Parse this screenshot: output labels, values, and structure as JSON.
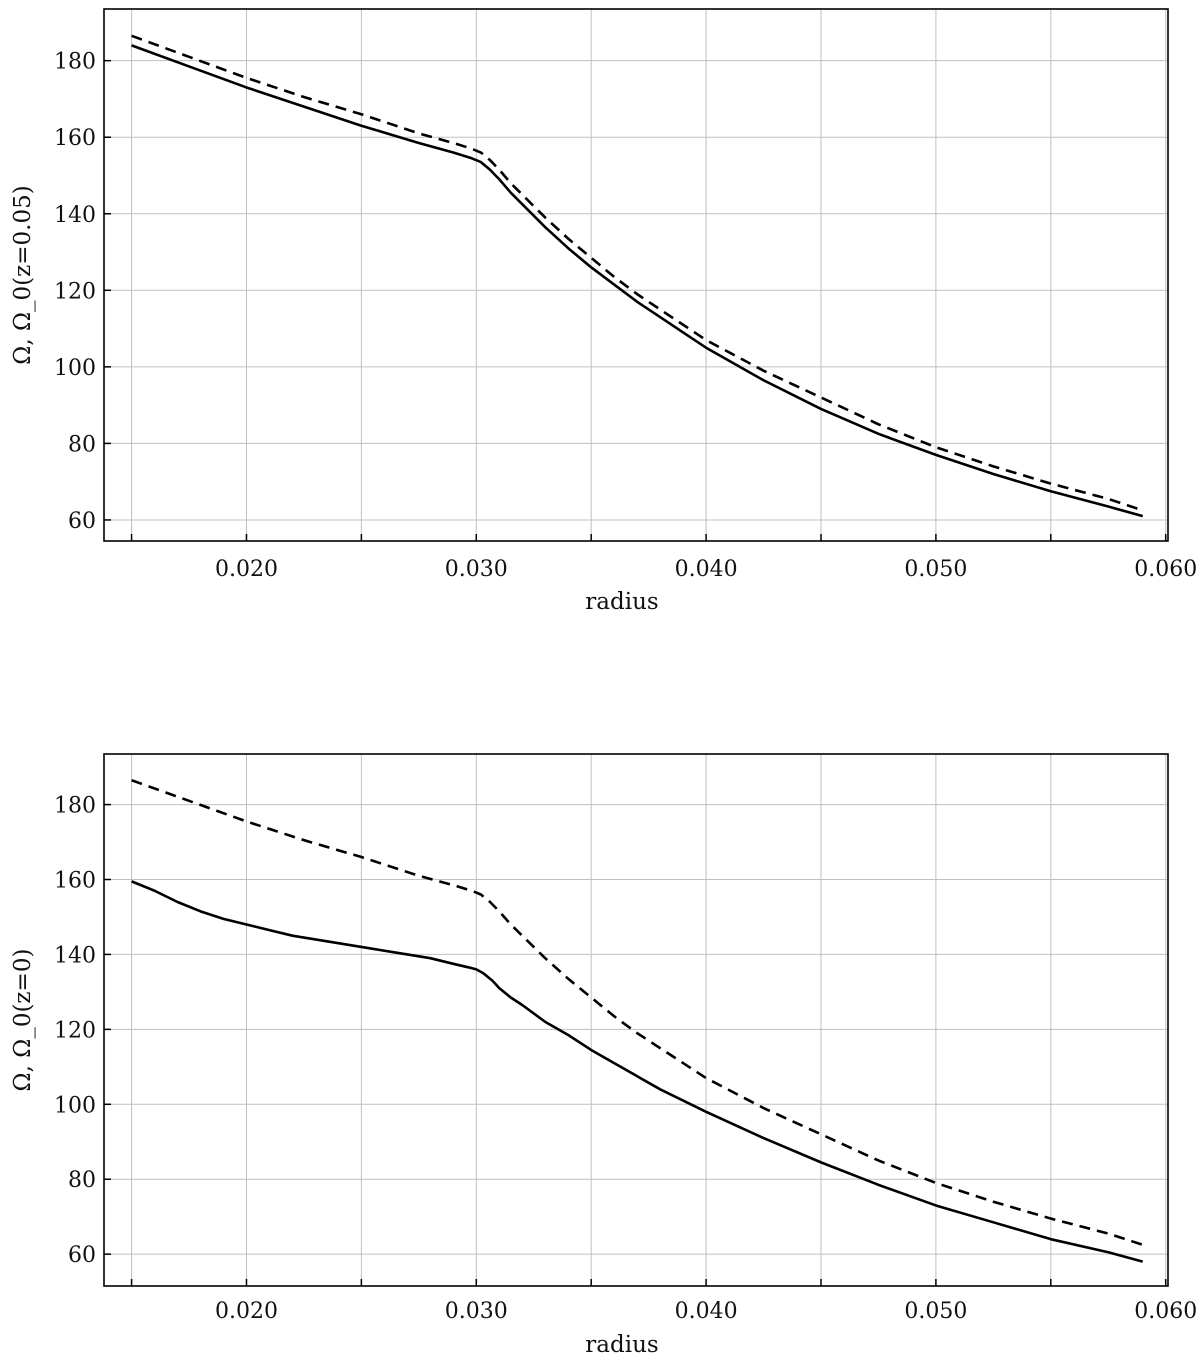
{
  "colors": {
    "line": "#000000",
    "grid": "#c0c0c0",
    "frame": "#000000",
    "background": "#ffffff"
  },
  "chart_data": [
    {
      "type": "line",
      "xlabel": "radius",
      "ylabel": "Ω,  Ω_0(z=0.05)",
      "xlim": [
        0.0138,
        0.0601
      ],
      "ylim": [
        54.5,
        193.5
      ],
      "xticks": [
        0.02,
        0.03,
        0.04,
        0.05,
        0.06
      ],
      "xtick_labels": [
        "0.020",
        "0.030",
        "0.040",
        "0.050",
        "0.060"
      ],
      "xminor": [
        0.015,
        0.025,
        0.035,
        0.045,
        0.055
      ],
      "yticks": [
        60,
        80,
        100,
        120,
        140,
        160,
        180
      ],
      "ytick_labels": [
        "60",
        "80",
        "100",
        "120",
        "140",
        "160",
        "180"
      ],
      "grid": true,
      "series": [
        {
          "style": "solid",
          "x": [
            0.015,
            0.0175,
            0.02,
            0.0225,
            0.025,
            0.0275,
            0.029,
            0.0298,
            0.0302,
            0.0306,
            0.031,
            0.0315,
            0.032,
            0.0325,
            0.033,
            0.034,
            0.035,
            0.036,
            0.037,
            0.038,
            0.039,
            0.04,
            0.0425,
            0.045,
            0.0475,
            0.05,
            0.0525,
            0.055,
            0.0575,
            0.059
          ],
          "y": [
            184,
            178.5,
            173,
            168,
            163,
            158.5,
            156,
            154.5,
            153.5,
            151.5,
            149,
            145.5,
            142.5,
            139.5,
            136.5,
            131,
            126,
            121.5,
            117,
            113,
            109,
            105,
            96.5,
            89,
            82.5,
            77,
            72,
            67.5,
            63.5,
            61
          ]
        },
        {
          "style": "dashed",
          "x": [
            0.015,
            0.0175,
            0.02,
            0.0225,
            0.025,
            0.0275,
            0.029,
            0.0298,
            0.0302,
            0.0306,
            0.031,
            0.0315,
            0.032,
            0.0325,
            0.033,
            0.034,
            0.035,
            0.036,
            0.037,
            0.038,
            0.039,
            0.04,
            0.0425,
            0.045,
            0.0475,
            0.05,
            0.0525,
            0.055,
            0.0575,
            0.059
          ],
          "y": [
            186.5,
            181,
            175.5,
            170.5,
            166,
            161,
            158.5,
            157,
            156,
            154,
            151.5,
            148,
            145,
            142,
            139,
            133.5,
            128.5,
            123.5,
            119,
            115,
            111,
            107,
            99,
            92,
            85,
            79,
            74,
            69.5,
            65.5,
            62.5
          ]
        }
      ]
    },
    {
      "type": "line",
      "xlabel": "radius",
      "ylabel": "Ω,  Ω_0(z=0)",
      "xlim": [
        0.0138,
        0.0601
      ],
      "ylim": [
        51.5,
        193.5
      ],
      "xticks": [
        0.02,
        0.03,
        0.04,
        0.05,
        0.06
      ],
      "xtick_labels": [
        "0.020",
        "0.030",
        "0.040",
        "0.050",
        "0.060"
      ],
      "xminor": [
        0.015,
        0.025,
        0.035,
        0.045,
        0.055
      ],
      "yticks": [
        60,
        80,
        100,
        120,
        140,
        160,
        180
      ],
      "ytick_labels": [
        "60",
        "80",
        "100",
        "120",
        "140",
        "160",
        "180"
      ],
      "grid": true,
      "series": [
        {
          "style": "solid",
          "x": [
            0.015,
            0.016,
            0.017,
            0.018,
            0.019,
            0.02,
            0.021,
            0.022,
            0.023,
            0.025,
            0.027,
            0.028,
            0.029,
            0.0297,
            0.03,
            0.0303,
            0.0307,
            0.031,
            0.0315,
            0.032,
            0.033,
            0.034,
            0.035,
            0.036,
            0.037,
            0.038,
            0.039,
            0.04,
            0.0425,
            0.045,
            0.0475,
            0.05,
            0.0525,
            0.055,
            0.0575,
            0.059
          ],
          "y": [
            159.5,
            157,
            154,
            151.5,
            149.5,
            148,
            146.5,
            145,
            144,
            142,
            140,
            139,
            137.5,
            136.5,
            136,
            135,
            133,
            131,
            128.5,
            126.5,
            122,
            118.5,
            114.5,
            111,
            107.5,
            104,
            101,
            98,
            91,
            84.5,
            78.5,
            73,
            68.5,
            64,
            60.5,
            58
          ]
        },
        {
          "style": "dashed",
          "x": [
            0.015,
            0.0175,
            0.02,
            0.0225,
            0.025,
            0.0275,
            0.029,
            0.0298,
            0.0302,
            0.0306,
            0.031,
            0.0315,
            0.032,
            0.0325,
            0.033,
            0.034,
            0.035,
            0.036,
            0.037,
            0.038,
            0.039,
            0.04,
            0.0425,
            0.045,
            0.0475,
            0.05,
            0.0525,
            0.055,
            0.0575,
            0.059
          ],
          "y": [
            186.5,
            181,
            175.5,
            170.5,
            166,
            161,
            158.5,
            157,
            156,
            154,
            151.5,
            148,
            145,
            142,
            139,
            133.5,
            128.5,
            123.5,
            119,
            115,
            111,
            107,
            99,
            92,
            85,
            79,
            74,
            69.5,
            65.5,
            62.5
          ]
        }
      ]
    }
  ]
}
